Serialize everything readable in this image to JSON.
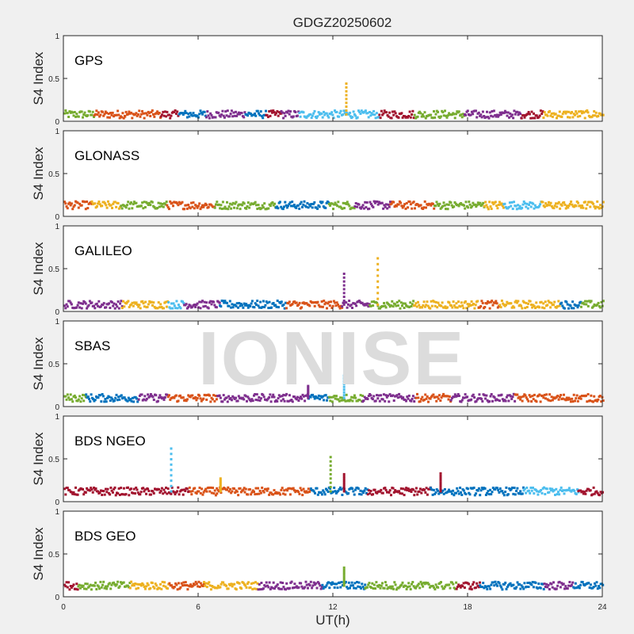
{
  "figure_title": "GDGZ20250602",
  "watermark": "IONISE",
  "colors": {
    "background": "#f0f0f0",
    "axes_bg": "#ffffff",
    "series": [
      "#0072bd",
      "#d95319",
      "#edb120",
      "#7e2f8e",
      "#77ac30",
      "#4dbeee",
      "#a2142f"
    ]
  },
  "chart_data": [
    {
      "type": "scatter",
      "panel_label": "GPS",
      "ylabel": "S4 Index",
      "xlim": [
        0,
        24
      ],
      "ylim": [
        0,
        1
      ],
      "yticks": [
        {
          "value": 0,
          "label": "0"
        },
        {
          "value": 0.5,
          "label": "0.5"
        },
        {
          "value": 1,
          "label": "1"
        }
      ],
      "baseline": 0.08,
      "spikes": [
        {
          "x": 12.6,
          "ymax": 0.44,
          "color": "#edb120"
        }
      ]
    },
    {
      "type": "scatter",
      "panel_label": "GLONASS",
      "ylabel": "S4 Index",
      "xlim": [
        0,
        24
      ],
      "ylim": [
        0,
        1
      ],
      "yticks": [
        {
          "value": 0,
          "label": "0"
        },
        {
          "value": 0.5,
          "label": "0.5"
        },
        {
          "value": 1,
          "label": "1"
        }
      ],
      "baseline": 0.13,
      "spikes": []
    },
    {
      "type": "scatter",
      "panel_label": "GALILEO",
      "ylabel": "S4 Index",
      "xlim": [
        0,
        24
      ],
      "ylim": [
        0,
        1
      ],
      "yticks": [
        {
          "value": 0,
          "label": "0"
        },
        {
          "value": 0.5,
          "label": "0.5"
        },
        {
          "value": 1,
          "label": "1"
        }
      ],
      "baseline": 0.08,
      "spikes": [
        {
          "x": 12.5,
          "ymax": 0.44,
          "color": "#7e2f8e"
        },
        {
          "x": 14.0,
          "ymax": 0.62,
          "color": "#edb120"
        }
      ]
    },
    {
      "type": "scatter",
      "panel_label": "SBAS",
      "ylabel": "S4 Index",
      "xlim": [
        0,
        24
      ],
      "ylim": [
        0,
        1
      ],
      "yticks": [
        {
          "value": 0,
          "label": "0"
        },
        {
          "value": 0.5,
          "label": "0.5"
        },
        {
          "value": 1,
          "label": "1"
        }
      ],
      "baseline": 0.1,
      "spikes": [
        {
          "x": 10.9,
          "ymax": 0.24,
          "color": "#7e2f8e"
        },
        {
          "x": 12.5,
          "ymax": 0.36,
          "color": "#4dbeee"
        }
      ]
    },
    {
      "type": "scatter",
      "panel_label": "BDS NGEO",
      "ylabel": "S4 Index",
      "xlim": [
        0,
        24
      ],
      "ylim": [
        0,
        1
      ],
      "yticks": [
        {
          "value": 0,
          "label": "0"
        },
        {
          "value": 0.5,
          "label": "0.5"
        },
        {
          "value": 1,
          "label": "1"
        }
      ],
      "baseline": 0.12,
      "spikes": [
        {
          "x": 4.8,
          "ymax": 0.62,
          "color": "#4dbeee"
        },
        {
          "x": 7.0,
          "ymax": 0.27,
          "color": "#edb120"
        },
        {
          "x": 11.9,
          "ymax": 0.52,
          "color": "#77ac30"
        },
        {
          "x": 12.5,
          "ymax": 0.32,
          "color": "#a2142f"
        },
        {
          "x": 16.8,
          "ymax": 0.33,
          "color": "#a2142f"
        }
      ]
    },
    {
      "type": "scatter",
      "panel_label": "BDS GEO",
      "ylabel": "S4 Index",
      "xlim": [
        0,
        24
      ],
      "ylim": [
        0,
        1
      ],
      "xticks": [
        {
          "value": 0,
          "label": "0"
        },
        {
          "value": 6,
          "label": "6"
        },
        {
          "value": 12,
          "label": "12"
        },
        {
          "value": 18,
          "label": "18"
        },
        {
          "value": 24,
          "label": "24"
        }
      ],
      "xlabel": "UT(h)",
      "yticks": [
        {
          "value": 0,
          "label": "0"
        },
        {
          "value": 0.5,
          "label": "0.5"
        },
        {
          "value": 1,
          "label": "1"
        }
      ],
      "baseline": 0.13,
      "spikes": [
        {
          "x": 12.5,
          "ymax": 0.34,
          "color": "#77ac30"
        }
      ]
    }
  ]
}
